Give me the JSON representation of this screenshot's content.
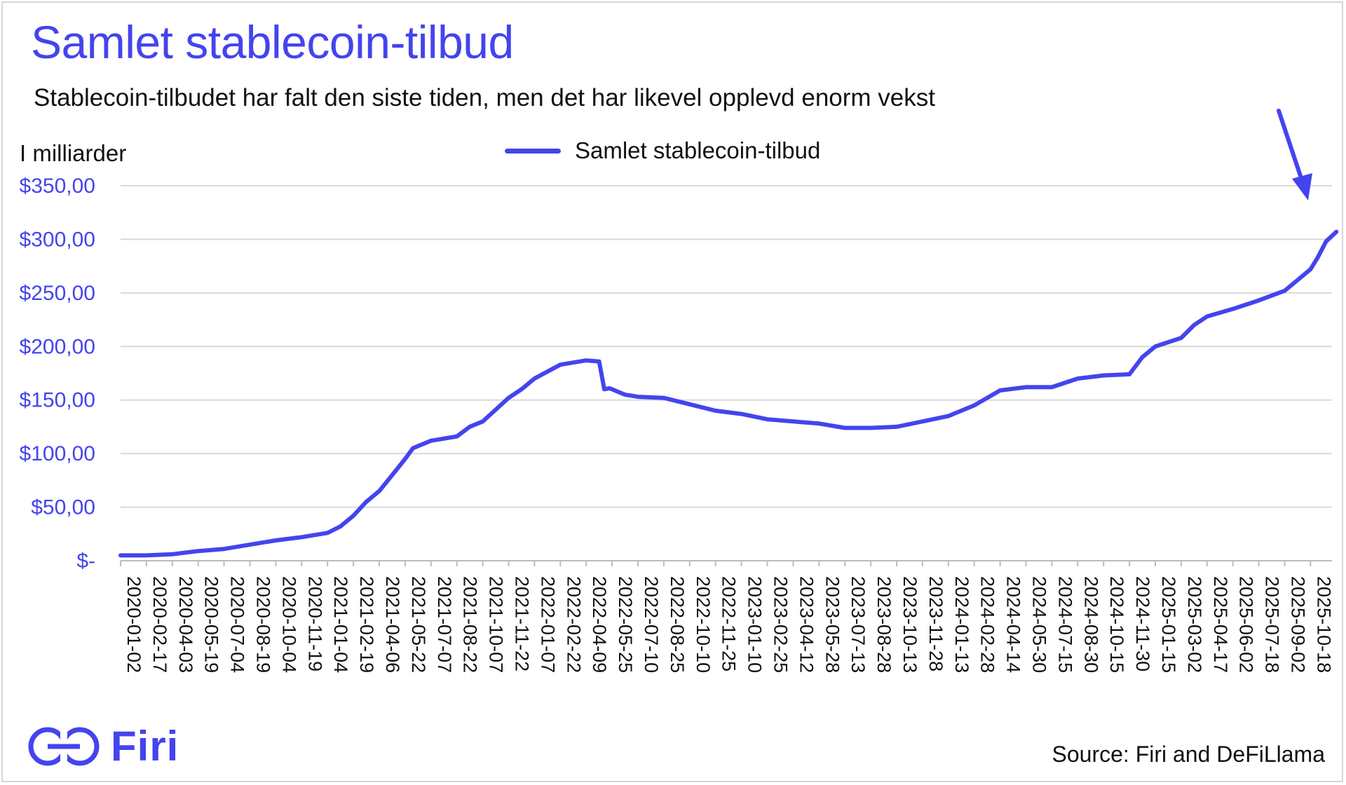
{
  "title": "Samlet stablecoin-tilbud",
  "subtitle": "Stablecoin-tilbudet har falt den siste tiden, men det har likevel opplevd enorm vekst",
  "unit_label": "I milliarder",
  "legend_label": "Samlet stablecoin-tilbud",
  "source": "Source: Firi and DeFiLlama",
  "brand": {
    "name": "Firi",
    "color": "#4444ee"
  },
  "chart_data": {
    "type": "line",
    "title": "Samlet stablecoin-tilbud",
    "ylabel": "I milliarder",
    "xlabel": "",
    "ylim": [
      0,
      350
    ],
    "y_ticks": [
      0,
      50,
      100,
      150,
      200,
      250,
      300,
      350
    ],
    "y_tick_labels": [
      "$-",
      "$50,00",
      "$100,00",
      "$150,00",
      "$200,00",
      "$250,00",
      "$300,00",
      "$350,00"
    ],
    "x_tick_labels": [
      "2020-01-02",
      "2020-02-17",
      "2020-04-03",
      "2020-05-19",
      "2020-07-04",
      "2020-08-19",
      "2020-10-04",
      "2020-11-19",
      "2021-01-04",
      "2021-02-19",
      "2021-04-06",
      "2021-05-22",
      "2021-07-07",
      "2021-08-22",
      "2021-10-07",
      "2021-11-22",
      "2022-01-07",
      "2022-02-22",
      "2022-04-09",
      "2022-05-25",
      "2022-07-10",
      "2022-08-25",
      "2022-10-10",
      "2022-11-25",
      "2023-01-10",
      "2023-02-25",
      "2023-04-12",
      "2023-05-28",
      "2023-07-13",
      "2023-08-28",
      "2023-10-13",
      "2023-11-28",
      "2024-01-13",
      "2024-02-28",
      "2024-04-14",
      "2024-05-30",
      "2024-07-15",
      "2024-08-30",
      "2024-10-15",
      "2024-11-30",
      "2025-01-15",
      "2025-03-02",
      "2025-04-17",
      "2025-06-02",
      "2025-07-18",
      "2025-09-02",
      "2025-10-18"
    ],
    "grid": true,
    "legend_position": "top-center",
    "series": [
      {
        "name": "Samlet stablecoin-tilbud",
        "color": "#4444ee",
        "x_index": [
          0,
          1,
          2,
          3,
          4,
          5,
          6,
          7,
          8,
          8.5,
          9,
          9.5,
          10,
          10.5,
          11,
          11.3,
          11.6,
          12,
          13,
          13.5,
          14,
          15,
          15.5,
          16,
          17,
          18,
          18.5,
          18.7,
          18.9,
          19,
          19.5,
          20,
          21,
          22,
          23,
          24,
          25,
          26,
          27,
          28,
          29,
          30,
          31,
          32,
          33,
          34,
          35,
          36,
          37,
          38,
          39,
          39.5,
          40,
          41,
          41.5,
          42,
          43,
          44,
          45,
          45.5,
          46,
          46.3,
          46.6,
          47
        ],
        "values": [
          5,
          5,
          6,
          9,
          11,
          15,
          19,
          22,
          26,
          32,
          42,
          55,
          65,
          80,
          95,
          105,
          108,
          112,
          116,
          125,
          130,
          152,
          160,
          170,
          183,
          187,
          186,
          160,
          161,
          160,
          155,
          153,
          152,
          146,
          140,
          137,
          132,
          130,
          128,
          124,
          124,
          125,
          130,
          135,
          145,
          159,
          162,
          162,
          170,
          173,
          174,
          190,
          200,
          208,
          220,
          228,
          235,
          243,
          252,
          262,
          272,
          284,
          298,
          307
        ]
      }
    ]
  }
}
